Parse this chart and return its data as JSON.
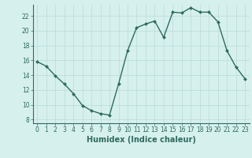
{
  "x": [
    0,
    1,
    2,
    3,
    4,
    5,
    6,
    7,
    8,
    9,
    10,
    11,
    12,
    13,
    14,
    15,
    16,
    17,
    18,
    19,
    20,
    21,
    22,
    23
  ],
  "y": [
    15.8,
    15.2,
    13.9,
    12.8,
    11.5,
    9.9,
    9.2,
    8.8,
    8.6,
    12.8,
    17.3,
    20.4,
    20.9,
    21.3,
    19.1,
    22.5,
    22.4,
    23.1,
    22.5,
    22.5,
    21.2,
    17.3,
    15.1,
    13.5
  ],
  "line_color": "#2e6b5e",
  "marker": "D",
  "marker_size": 2.0,
  "bg_color": "#d6f0ee",
  "grid_color": "#b8dbd8",
  "xlabel": "Humidex (Indice chaleur)",
  "xlim": [
    -0.5,
    23.5
  ],
  "ylim": [
    7.5,
    23.5
  ],
  "yticks": [
    8,
    10,
    12,
    14,
    16,
    18,
    20,
    22
  ],
  "xticks": [
    0,
    1,
    2,
    3,
    4,
    5,
    6,
    7,
    8,
    9,
    10,
    11,
    12,
    13,
    14,
    15,
    16,
    17,
    18,
    19,
    20,
    21,
    22,
    23
  ],
  "tick_fontsize": 5.5,
  "label_fontsize": 7.0,
  "line_width": 1.0
}
